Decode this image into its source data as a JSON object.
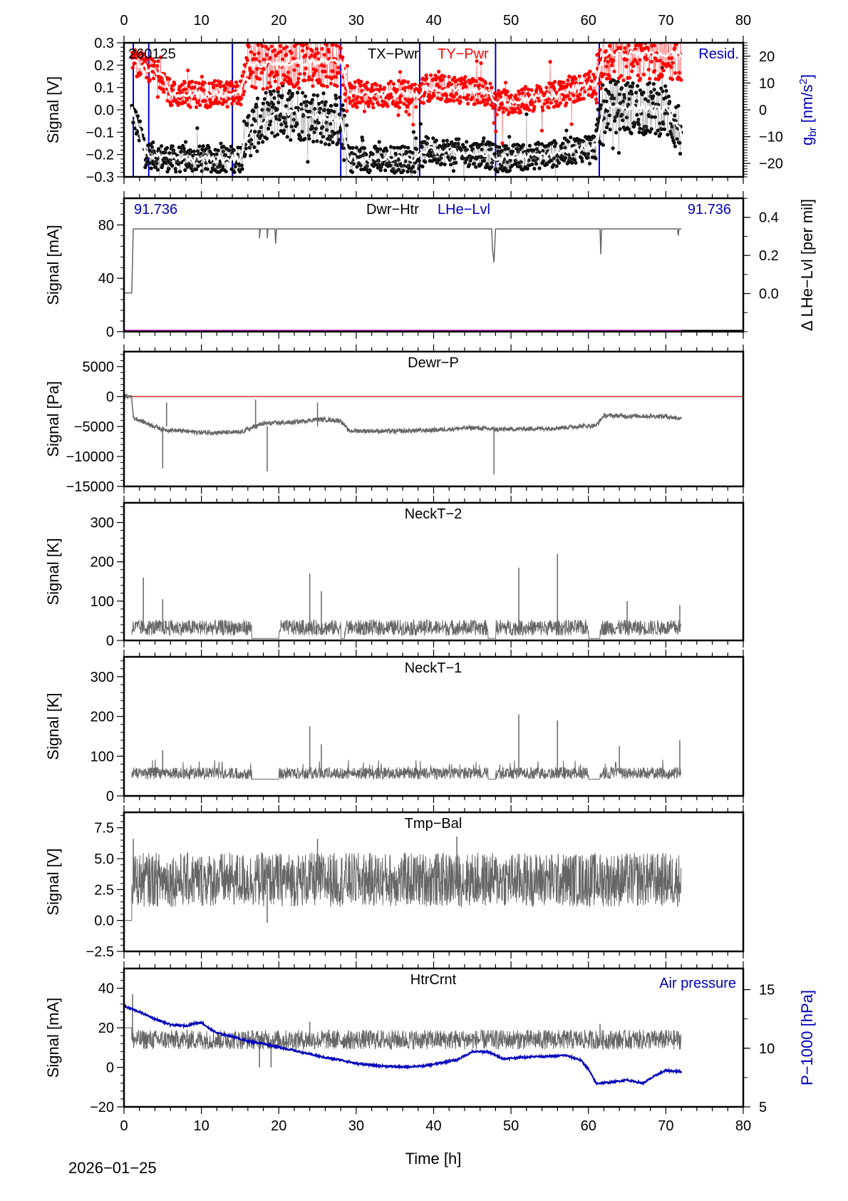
{
  "figure": {
    "date_label": "2026-01-25",
    "xlabel": "Time [h]",
    "x_range": [
      0,
      80
    ],
    "x_ticks": [
      0,
      10,
      20,
      30,
      40,
      50,
      60,
      70,
      80
    ]
  },
  "chart_data": [
    {
      "id": "tx-pwr",
      "type": "scatter",
      "title": "TX-Pwr",
      "corner_label": "260125",
      "ylabel": "Signal [V]",
      "ylim": [
        -0.3,
        0.3
      ],
      "yticks": [
        "0.3",
        "0.2",
        "0.1",
        "0.0",
        "-0.1",
        "-0.2",
        "-0.3"
      ],
      "ytick_values": [
        0.3,
        0.2,
        0.1,
        0.0,
        -0.1,
        -0.2,
        -0.3
      ],
      "right_ylabel": "g_br [nm/s²]",
      "right_ylim": [
        -25,
        25
      ],
      "right_yticks": [
        "20",
        "10",
        "0",
        "-10",
        "-20"
      ],
      "right_ytick_values": [
        20,
        10,
        0,
        -10,
        -20
      ],
      "legend": [
        {
          "label": "TX-Pwr",
          "color": "#000000"
        },
        {
          "label": "TY-Pwr",
          "color": "#ff0000"
        },
        {
          "label": "Resid.",
          "color": "#0000cc"
        }
      ],
      "series": [
        {
          "name": "TY-Pwr",
          "color": "#ff0000",
          "segments": [
            [
              1,
              0.22
            ],
            [
              5,
              0.15
            ],
            [
              6,
              0.07
            ],
            [
              15,
              0.07
            ],
            [
              16,
              0.2
            ],
            [
              28,
              0.22
            ],
            [
              29,
              0.07
            ],
            [
              38,
              0.07
            ],
            [
              39,
              0.1
            ],
            [
              47,
              0.08
            ],
            [
              48,
              0.03
            ],
            [
              55,
              0.06
            ],
            [
              61,
              0.12
            ],
            [
              62,
              0.25
            ],
            [
              72,
              0.25
            ]
          ]
        },
        {
          "name": "TX-Pwr",
          "color": "#000000",
          "segments": [
            [
              1,
              0.0
            ],
            [
              3,
              -0.2
            ],
            [
              6,
              -0.22
            ],
            [
              15,
              -0.22
            ],
            [
              16,
              -0.1
            ],
            [
              20,
              0.0
            ],
            [
              28,
              -0.05
            ],
            [
              29,
              -0.22
            ],
            [
              38,
              -0.22
            ],
            [
              39,
              -0.18
            ],
            [
              47,
              -0.2
            ],
            [
              48,
              -0.22
            ],
            [
              55,
              -0.2
            ],
            [
              61,
              -0.16
            ],
            [
              62,
              0.02
            ],
            [
              70,
              0.0
            ],
            [
              72,
              -0.1
            ]
          ]
        },
        {
          "name": "Resid.",
          "color": "#0000cc",
          "vlines": [
            1.2,
            3.2,
            14.0,
            28.0,
            38.2,
            48.0,
            61.4
          ]
        }
      ]
    },
    {
      "id": "dwr-htr",
      "type": "line",
      "title": "Dwr-Htr",
      "title2": "LHe-Lvl",
      "left_value_label": "91.736",
      "right_value_label": "91.736",
      "ylabel": "Signal [mA]",
      "ylim": [
        0,
        100
      ],
      "yticks": [
        "80",
        "40",
        "0"
      ],
      "ytick_values": [
        80,
        40,
        0
      ],
      "right_ylabel": "Δ LHe-Lvl [per mil]",
      "right_ylim": [
        -0.2,
        0.5
      ],
      "right_yticks": [
        "0.4",
        "0.2",
        "0.0"
      ],
      "right_ytick_values": [
        0.4,
        0.2,
        0.0
      ],
      "series": [
        {
          "name": "Dwr-Htr",
          "color": "#666666",
          "points": [
            [
              0,
              29
            ],
            [
              1,
              29
            ],
            [
              1.2,
              77
            ],
            [
              17.5,
              77
            ],
            [
              17.5,
              70
            ],
            [
              17.6,
              77
            ],
            [
              18.5,
              77
            ],
            [
              18.5,
              70
            ],
            [
              18.6,
              77
            ],
            [
              19.5,
              77
            ],
            [
              19.6,
              66
            ],
            [
              19.7,
              77
            ],
            [
              47.5,
              77
            ],
            [
              47.6,
              62
            ],
            [
              47.8,
              52
            ],
            [
              48,
              77
            ],
            [
              61.5,
              77
            ],
            [
              61.6,
              58
            ],
            [
              61.7,
              77
            ],
            [
              71.5,
              77
            ],
            [
              71.6,
              72
            ],
            [
              71.7,
              77
            ],
            [
              72,
              77
            ]
          ]
        },
        {
          "name": "LHe-Lvl",
          "color": "#aa00aa",
          "points": [
            [
              0,
              0.5
            ],
            [
              72,
              0.5
            ]
          ]
        }
      ]
    },
    {
      "id": "dewr-p",
      "type": "line",
      "title": "Dewr-P",
      "ylabel": "Signal [Pa]",
      "ylim": [
        -15000,
        7500
      ],
      "yticks": [
        "5000",
        "0",
        "-5000",
        "-10000",
        "-15000"
      ],
      "ytick_values": [
        5000,
        0,
        -5000,
        -10000,
        -15000
      ],
      "reference_line": {
        "value": 0,
        "color": "#cc0000"
      },
      "series": [
        {
          "name": "Dewr-P",
          "color": "#666666",
          "points": [
            [
              0,
              0
            ],
            [
              1,
              0
            ],
            [
              1.2,
              -3500
            ],
            [
              3,
              -4500
            ],
            [
              5,
              -5500
            ],
            [
              10,
              -6000
            ],
            [
              15,
              -6000
            ],
            [
              18,
              -4500
            ],
            [
              22,
              -4300
            ],
            [
              25,
              -3800
            ],
            [
              28,
              -4000
            ],
            [
              29,
              -5700
            ],
            [
              35,
              -5800
            ],
            [
              40,
              -5600
            ],
            [
              45,
              -5200
            ],
            [
              48,
              -5500
            ],
            [
              55,
              -5300
            ],
            [
              61,
              -4800
            ],
            [
              62,
              -3200
            ],
            [
              70,
              -3300
            ],
            [
              72,
              -3700
            ]
          ],
          "spikes": [
            [
              5,
              -12000
            ],
            [
              18.5,
              -12500
            ],
            [
              47.8,
              -13000
            ],
            [
              5.5,
              -1000
            ],
            [
              17,
              -500
            ],
            [
              25,
              -1000
            ]
          ]
        }
      ]
    },
    {
      "id": "neckt-2",
      "type": "line",
      "title": "NeckT-2",
      "ylabel": "Signal [K]",
      "ylim": [
        0,
        350
      ],
      "yticks": [
        "300",
        "200",
        "100",
        "0"
      ],
      "ytick_values": [
        300,
        200,
        100,
        0
      ],
      "series": [
        {
          "name": "NeckT-2",
          "color": "#666666",
          "baseline": 25,
          "noise": 40,
          "gaps": [
            [
              0,
              1
            ],
            [
              16.5,
              20
            ],
            [
              28,
              28.5
            ],
            [
              47,
              48
            ],
            [
              60,
              61.5
            ]
          ],
          "spikes": [
            [
              2.5,
              160
            ],
            [
              5,
              105
            ],
            [
              24,
              170
            ],
            [
              25.5,
              125
            ],
            [
              51,
              185
            ],
            [
              56,
              220
            ],
            [
              65,
              100
            ],
            [
              71.8,
              90
            ]
          ]
        }
      ]
    },
    {
      "id": "neckt-1",
      "type": "line",
      "title": "NeckT-1",
      "ylabel": "Signal [K]",
      "ylim": [
        0,
        350
      ],
      "yticks": [
        "300",
        "200",
        "100",
        "0"
      ],
      "ytick_values": [
        300,
        200,
        100,
        0
      ],
      "series": [
        {
          "name": "NeckT-1",
          "color": "#666666",
          "baseline": 60,
          "noise": 30,
          "gaps": [
            [
              0,
              1
            ],
            [
              16.5,
              20
            ],
            [
              47,
              48
            ],
            [
              60,
              61.5
            ]
          ],
          "spikes": [
            [
              5,
              115
            ],
            [
              24,
              175
            ],
            [
              25.5,
              130
            ],
            [
              51,
              205
            ],
            [
              56,
              190
            ],
            [
              64,
              125
            ],
            [
              71.8,
              140
            ]
          ]
        }
      ]
    },
    {
      "id": "tmp-bal",
      "type": "line",
      "title": "Tmp-Bal",
      "ylabel": "Signal [V]",
      "ylim": [
        -2.5,
        8.75
      ],
      "yticks": [
        "7.5",
        "5.0",
        "2.5",
        "0.0",
        "-2.5"
      ],
      "ytick_values": [
        7.5,
        5.0,
        2.5,
        0.0,
        -2.5
      ],
      "series": [
        {
          "name": "Tmp-Bal",
          "color": "#666666",
          "baseline": 3.3,
          "noise": 2.2,
          "points_start": [
            [
              0,
              0
            ],
            [
              1,
              0
            ]
          ],
          "spikes": [
            [
              1.2,
              6.6
            ],
            [
              25,
              6.6
            ],
            [
              43,
              6.8
            ],
            [
              18.5,
              -0.2
            ]
          ]
        }
      ]
    },
    {
      "id": "htrcrnt",
      "type": "line",
      "title": "HtrCrnt",
      "right_title": "Air pressure",
      "ylabel": "Signal [mA]",
      "ylim": [
        -20,
        50
      ],
      "yticks": [
        "40",
        "20",
        "0",
        "-20"
      ],
      "ytick_values": [
        40,
        20,
        0,
        -20
      ],
      "right_ylabel": "P-1000 [hPa]",
      "right_ylim": [
        5,
        16.8
      ],
      "right_yticks": [
        "15",
        "10",
        "5"
      ],
      "right_ytick_values": [
        15,
        10,
        5
      ],
      "series": [
        {
          "name": "HtrCrnt",
          "color": "#666666",
          "baseline": 14,
          "noise": 5,
          "points_start": [
            [
              0,
              20
            ],
            [
              1,
              20
            ]
          ],
          "spikes": [
            [
              1.1,
              37
            ],
            [
              17.5,
              0
            ],
            [
              19,
              0
            ],
            [
              24,
              23
            ],
            [
              61.5,
              22
            ]
          ]
        },
        {
          "name": "Air pressure",
          "color": "#0000bb",
          "axis": "right",
          "points": [
            [
              0,
              13.6
            ],
            [
              2,
              13.1
            ],
            [
              4,
              12.5
            ],
            [
              6,
              12.0
            ],
            [
              8,
              11.9
            ],
            [
              9,
              12.1
            ],
            [
              10,
              12.2
            ],
            [
              11,
              11.7
            ],
            [
              12,
              11.3
            ],
            [
              14,
              11.0
            ],
            [
              16,
              10.6
            ],
            [
              18,
              10.4
            ],
            [
              20,
              10.1
            ],
            [
              22,
              9.8
            ],
            [
              24,
              9.5
            ],
            [
              26,
              9.2
            ],
            [
              28,
              9.0
            ],
            [
              30,
              8.7
            ],
            [
              33,
              8.5
            ],
            [
              36,
              8.4
            ],
            [
              39,
              8.5
            ],
            [
              42,
              8.9
            ],
            [
              43,
              9.0
            ],
            [
              45,
              9.7
            ],
            [
              47,
              9.7
            ],
            [
              49,
              9.1
            ],
            [
              51,
              9.2
            ],
            [
              53,
              9.3
            ],
            [
              55,
              9.3
            ],
            [
              57,
              9.4
            ],
            [
              59,
              9.0
            ],
            [
              60,
              8.2
            ],
            [
              61,
              7.0
            ],
            [
              63,
              7.1
            ],
            [
              65,
              7.3
            ],
            [
              67,
              7.0
            ],
            [
              69,
              7.8
            ],
            [
              70,
              8.1
            ],
            [
              72,
              8.0
            ]
          ]
        }
      ]
    }
  ]
}
